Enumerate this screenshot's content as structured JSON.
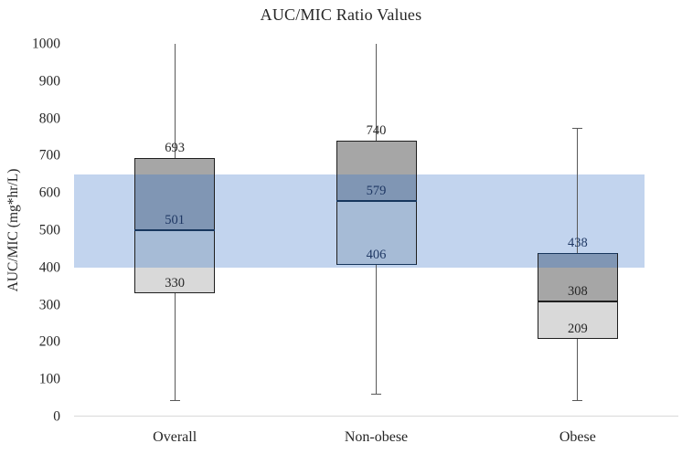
{
  "title": "AUC/MIC Ratio Values",
  "y_axis": {
    "title": "AUC/MIC (mg*hr/L)",
    "ticks": [
      0,
      100,
      200,
      300,
      400,
      500,
      600,
      700,
      800,
      900,
      1000
    ],
    "min": 0,
    "max": 1000
  },
  "colors": {
    "band": "#c2d4ee",
    "box_light": "#d9d9d9",
    "box_dark": "#a6a6a6",
    "band_over_light": "#a6bbd6",
    "band_over_dark": "#8096b4",
    "box_border": "#1f1f1f",
    "navy_line": "#17365d",
    "label_dark": "#262626",
    "label_navy": "#1f3864",
    "whisker": "#595959",
    "axis_line": "#d9d9d9"
  },
  "chart_data": {
    "type": "box",
    "title": "AUC/MIC Ratio Values",
    "ylabel": "AUC/MIC (mg*hr/L)",
    "ylim": [
      0,
      1000
    ],
    "grid": false,
    "reference_band": {
      "low": 400,
      "high": 650,
      "color_key": "band"
    },
    "categories": [
      "Overall",
      "Non-obese",
      "Obese"
    ],
    "series": [
      {
        "category": "Overall",
        "q1": 330,
        "median": 501,
        "q3": 693,
        "whisker_low": 45,
        "whisker_high": 1000,
        "whisker_low_cap": true,
        "whisker_high_cap": false,
        "median_color": "navy_line",
        "top_border": "box_border",
        "bottom_border": "box_border",
        "segments": [
          {
            "from": 330,
            "to": 400,
            "fill": "box_light"
          },
          {
            "from": 400,
            "to": 501,
            "fill": "band_over_light"
          },
          {
            "from": 501,
            "to": 650,
            "fill": "band_over_dark"
          },
          {
            "from": 650,
            "to": 693,
            "fill": "box_dark"
          }
        ],
        "labels": [
          {
            "text": "693",
            "value": 693,
            "color": "label_dark"
          },
          {
            "text": "501",
            "value": 501,
            "color": "label_navy"
          },
          {
            "text": "330",
            "value": 330,
            "color": "label_dark"
          }
        ]
      },
      {
        "category": "Non-obese",
        "q1": 406,
        "median": 579,
        "q3": 740,
        "whisker_low": 62,
        "whisker_high": 1000,
        "whisker_low_cap": true,
        "whisker_high_cap": false,
        "median_color": "navy_line",
        "top_border": "box_border",
        "bottom_border": "navy_line",
        "segments": [
          {
            "from": 406,
            "to": 579,
            "fill": "band_over_light"
          },
          {
            "from": 579,
            "to": 650,
            "fill": "band_over_dark"
          },
          {
            "from": 650,
            "to": 740,
            "fill": "box_dark"
          }
        ],
        "labels": [
          {
            "text": "740",
            "value": 740,
            "color": "label_dark"
          },
          {
            "text": "579",
            "value": 579,
            "color": "label_navy"
          },
          {
            "text": "406",
            "value": 406,
            "color": "label_navy"
          }
        ]
      },
      {
        "category": "Obese",
        "q1": 209,
        "median": 308,
        "q3": 438,
        "whisker_low": 45,
        "whisker_high": 775,
        "whisker_low_cap": true,
        "whisker_high_cap": true,
        "median_color": "box_border",
        "top_border": "navy_line",
        "bottom_border": "box_border",
        "segments": [
          {
            "from": 209,
            "to": 308,
            "fill": "box_light"
          },
          {
            "from": 308,
            "to": 400,
            "fill": "box_dark"
          },
          {
            "from": 400,
            "to": 438,
            "fill": "band_over_dark"
          }
        ],
        "labels": [
          {
            "text": "438",
            "value": 438,
            "color": "label_navy"
          },
          {
            "text": "308",
            "value": 308,
            "color": "label_dark"
          },
          {
            "text": "209",
            "value": 209,
            "color": "label_dark"
          }
        ]
      }
    ]
  }
}
